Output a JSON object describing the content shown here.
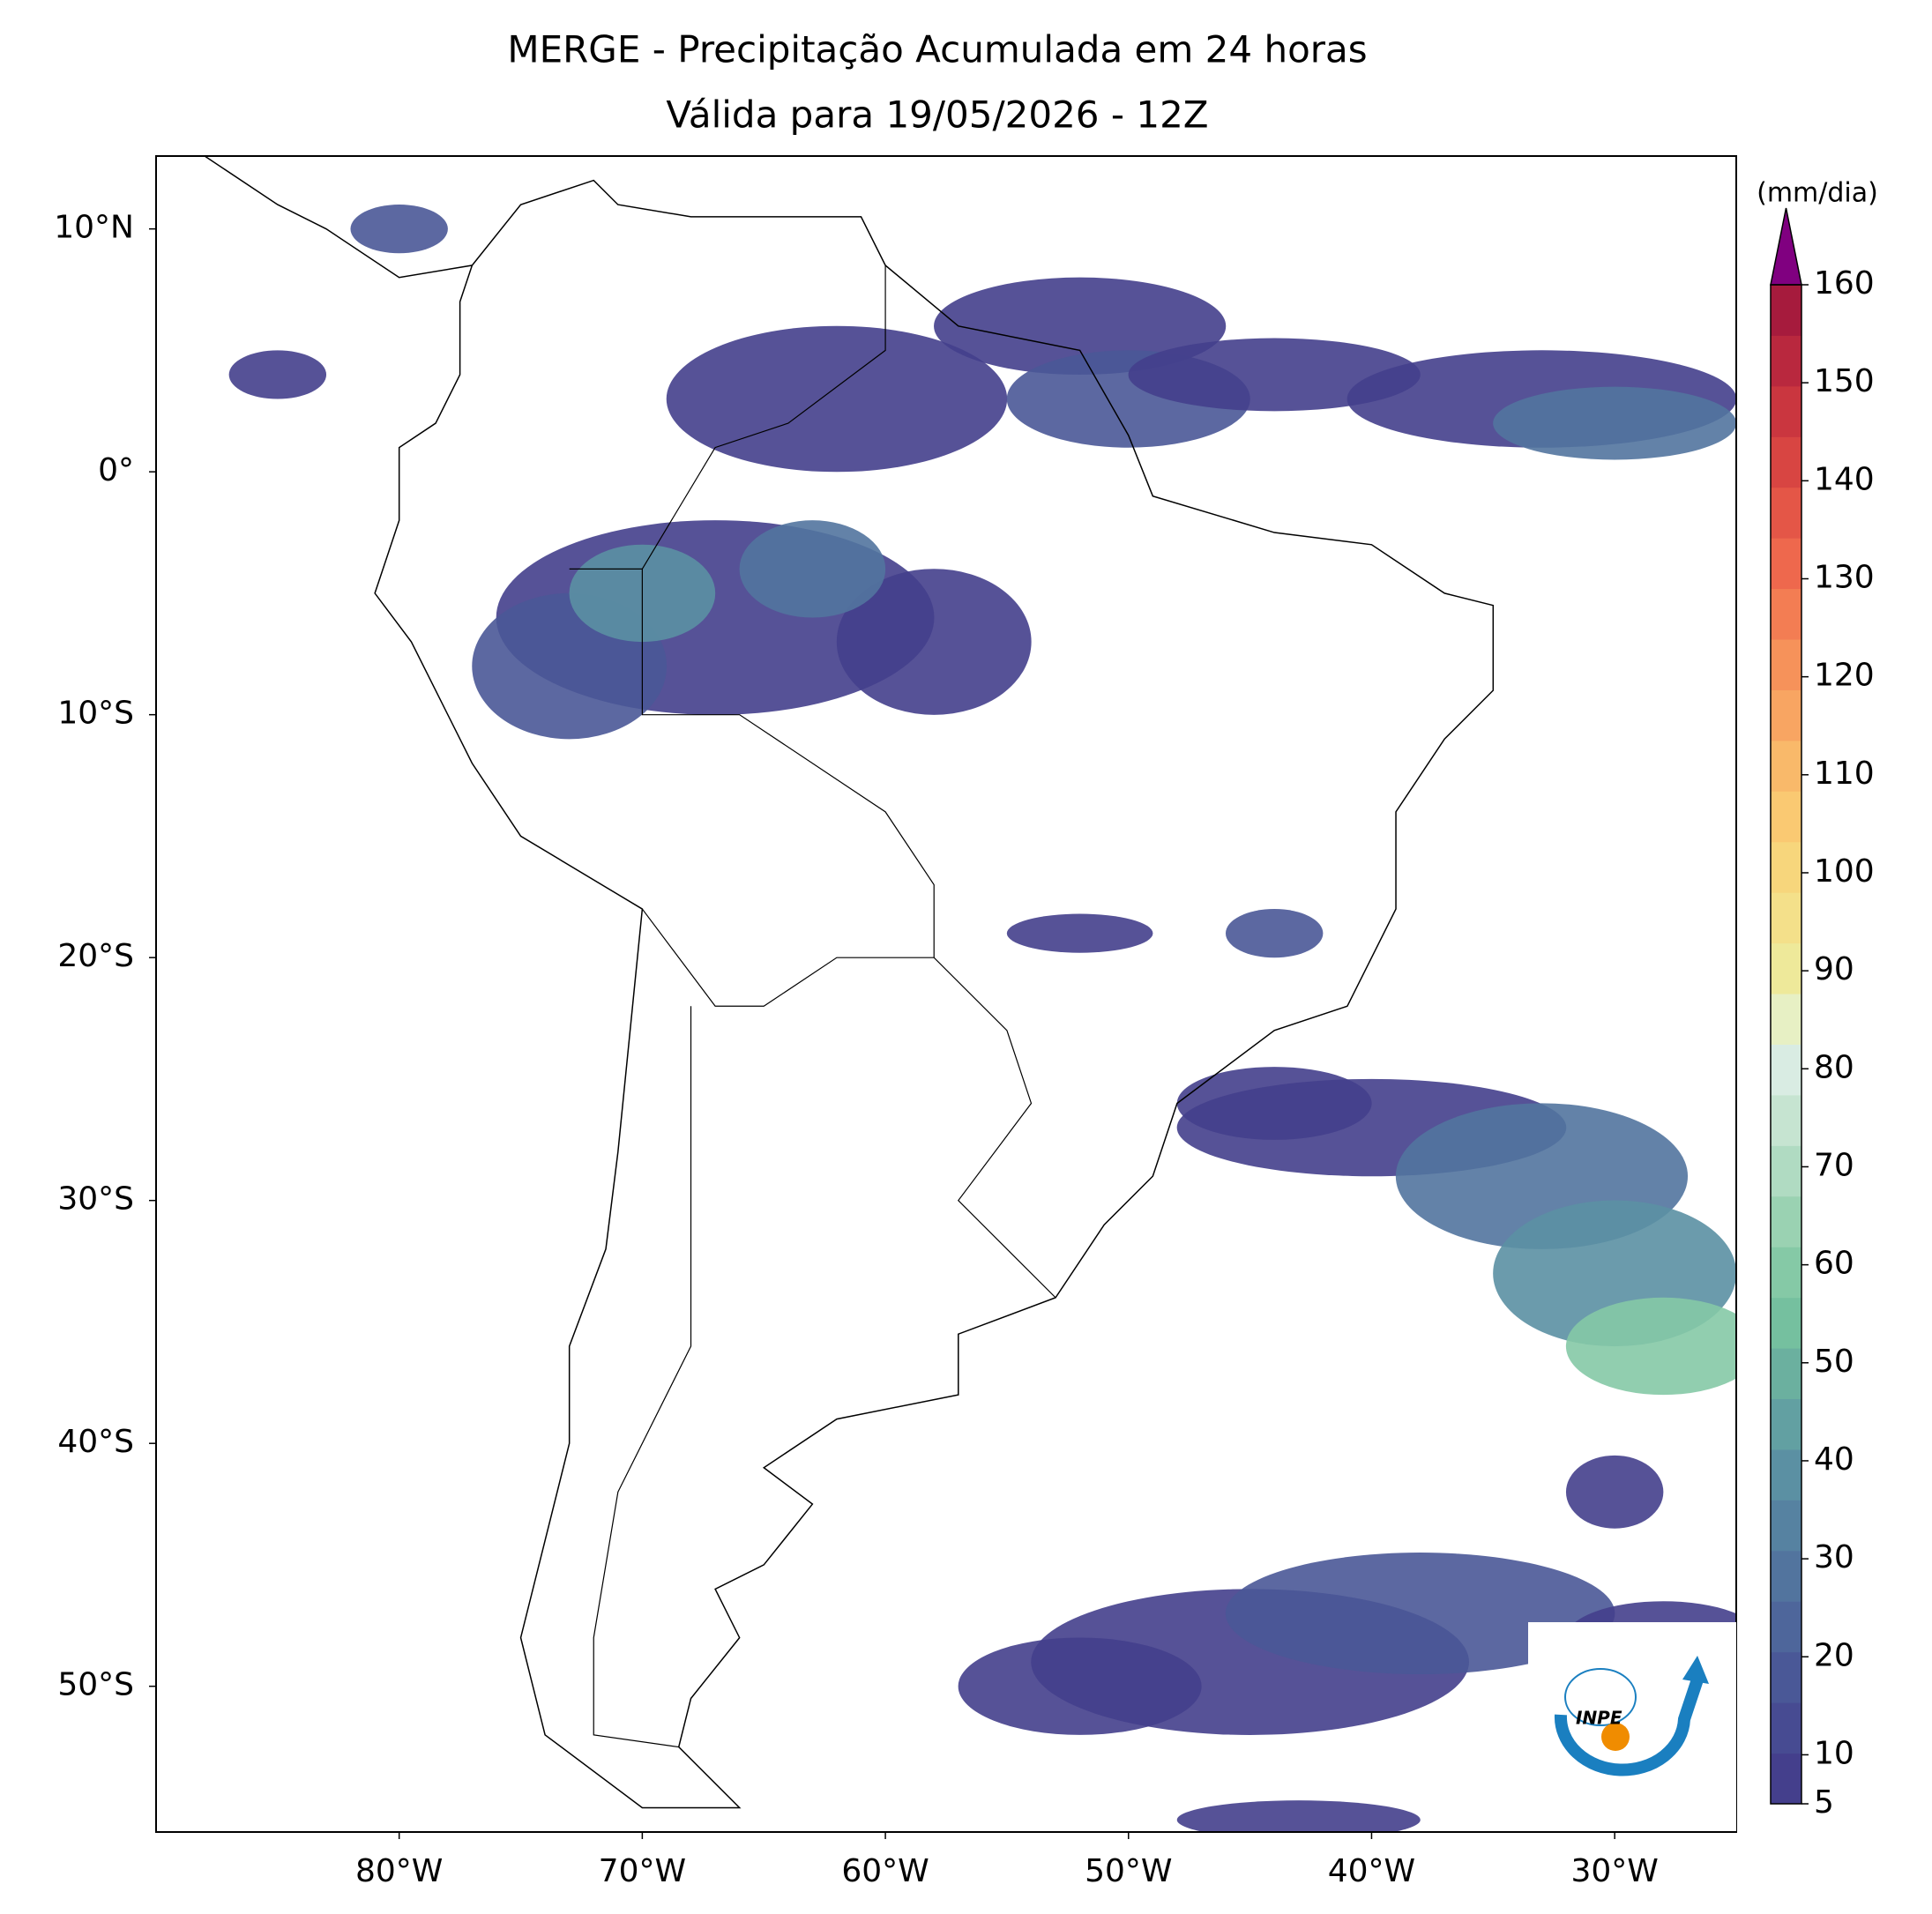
{
  "title": "MERGE - Precipitação Acumulada em 24 horas",
  "subtitle": "Válida para 19/05/2026 - 12Z",
  "map": {
    "xlim": [
      -90,
      -25
    ],
    "ylim": [
      -56,
      13
    ],
    "xticks": [
      {
        "value": -80,
        "label": "80°W"
      },
      {
        "value": -70,
        "label": "70°W"
      },
      {
        "value": -60,
        "label": "60°W"
      },
      {
        "value": -50,
        "label": "50°W"
      },
      {
        "value": -40,
        "label": "40°W"
      },
      {
        "value": -30,
        "label": "30°W"
      }
    ],
    "yticks": [
      {
        "value": 10,
        "label": "10°N"
      },
      {
        "value": 0,
        "label": "0°"
      },
      {
        "value": -10,
        "label": "10°S"
      },
      {
        "value": -20,
        "label": "20°S"
      },
      {
        "value": -30,
        "label": "30°S"
      },
      {
        "value": -40,
        "label": "40°S"
      },
      {
        "value": -50,
        "label": "50°S"
      }
    ]
  },
  "colorbar": {
    "label": "(mm/dia)",
    "lim": [
      5,
      160
    ],
    "ticks": [
      5,
      10,
      20,
      30,
      40,
      50,
      60,
      70,
      80,
      90,
      100,
      110,
      120,
      130,
      140,
      150,
      160
    ],
    "colors": [
      "#443f8c",
      "#474b92",
      "#4a5897",
      "#4e669b",
      "#52749e",
      "#5682a1",
      "#5b90a3",
      "#62a0a2",
      "#6bb09f",
      "#75c09f",
      "#85c9a6",
      "#9ad2b2",
      "#b0dbc2",
      "#c6e4d1",
      "#d9ece3",
      "#e7f0c4",
      "#eee99a",
      "#f4e08a",
      "#f7d67c",
      "#fac972",
      "#f9b96a",
      "#f8a562",
      "#f6925a",
      "#f37d53",
      "#ee684d",
      "#e45647",
      "#d84542",
      "#ca363f",
      "#b9283e",
      "#a61b3d"
    ],
    "extend_color": "#800080"
  },
  "logo": {
    "text": "INPE"
  }
}
